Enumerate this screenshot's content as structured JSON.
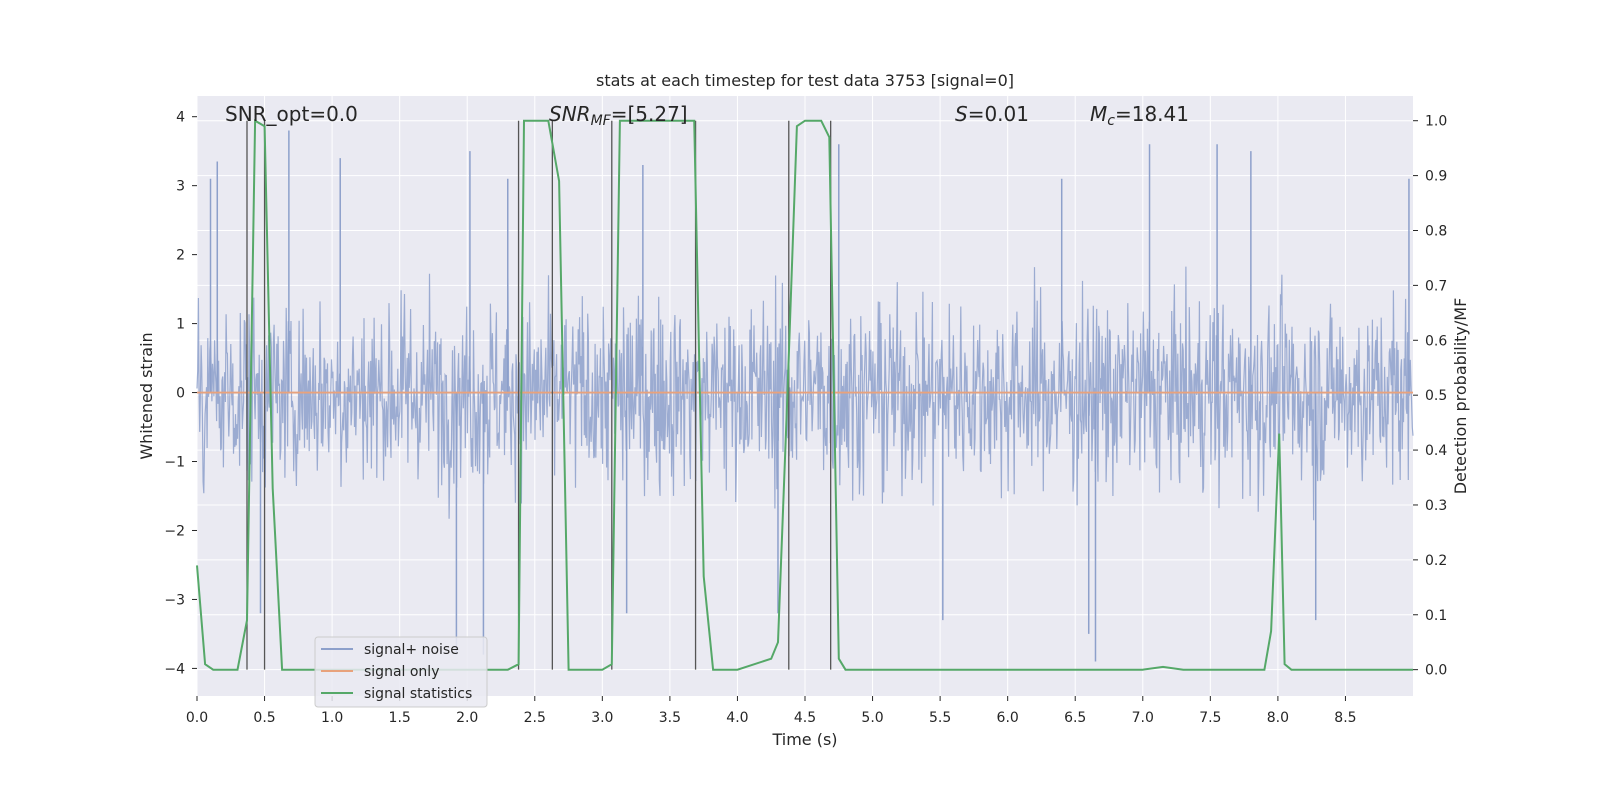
{
  "chart_data": {
    "type": "line",
    "title": "stats at each timestep for test data 3753 [signal=0]",
    "xlabel": "Time (s)",
    "ylabel": "Whitened strain",
    "ylabel_right": "Detection probability/MF",
    "xlim": [
      0.0,
      9.0
    ],
    "ylim": [
      -4.4,
      4.3
    ],
    "ylim_right": [
      -0.048,
      1.045
    ],
    "x_ticks": [
      "0.0",
      "0.5",
      "1.0",
      "1.5",
      "2.0",
      "2.5",
      "3.0",
      "3.5",
      "4.0",
      "4.5",
      "5.0",
      "5.5",
      "6.0",
      "6.5",
      "7.0",
      "7.5",
      "8.0",
      "8.5"
    ],
    "y_ticks": [
      "−4",
      "−3",
      "−2",
      "−1",
      "0",
      "1",
      "2",
      "3",
      "4"
    ],
    "y_ticks_right": [
      "0.0",
      "0.1",
      "0.2",
      "0.3",
      "0.4",
      "0.5",
      "0.6",
      "0.7",
      "0.8",
      "0.9",
      "1.0"
    ],
    "grid": true,
    "legend_position": "lower-left",
    "annotations": {
      "snr_opt": "SNR_opt=0.0",
      "snr_mf_main": "SNR",
      "snr_mf_sub": "MF",
      "snr_mf_rest": "=[5.27]",
      "s_italic": "S",
      "s_rest": "=0.01",
      "mc_main": "M",
      "mc_sub": "c",
      "mc_rest": "=18.41"
    },
    "series": [
      {
        "name": "signal+ noise",
        "color": "#8da0cb",
        "description_values": "noise-like whitened strain, roughly within -3.9 to 3.8",
        "envelope_upper": [
          2.0,
          2.3,
          2.2,
          2.4,
          2.3,
          2.2,
          2.5,
          2.2,
          2.3,
          2.4,
          2.3,
          2.2,
          2.3,
          2.4,
          2.3,
          2.4,
          2.2,
          2.3
        ],
        "peaks": [
          [
            0.1,
            3.1
          ],
          [
            0.15,
            3.35
          ],
          [
            0.68,
            3.8
          ],
          [
            1.06,
            3.4
          ],
          [
            2.02,
            3.5
          ],
          [
            2.3,
            3.1
          ],
          [
            3.3,
            3.3
          ],
          [
            4.75,
            3.6
          ],
          [
            6.4,
            3.1
          ],
          [
            7.05,
            3.6
          ],
          [
            7.55,
            3.6
          ],
          [
            7.8,
            3.5
          ],
          [
            8.97,
            3.1
          ]
        ],
        "troughs": [
          [
            0.47,
            -3.2
          ],
          [
            1.92,
            -3.8
          ],
          [
            2.12,
            -3.8
          ],
          [
            3.18,
            -3.2
          ],
          [
            4.3,
            -3.2
          ],
          [
            5.52,
            -3.3
          ],
          [
            6.6,
            -3.5
          ],
          [
            6.65,
            -3.9
          ],
          [
            8.28,
            -3.3
          ]
        ]
      },
      {
        "name": "signal only",
        "color": "#e8a27c",
        "x": [
          0.0,
          9.0
        ],
        "y": [
          0.0,
          0.0
        ]
      },
      {
        "name": "signal statistics",
        "color": "#55a868",
        "axis": "right",
        "x": [
          0.0,
          0.06,
          0.12,
          0.3,
          0.37,
          0.43,
          0.5,
          0.56,
          0.63,
          1.0,
          2.0,
          2.3,
          2.38,
          2.42,
          2.6,
          2.68,
          2.75,
          3.0,
          3.07,
          3.13,
          3.68,
          3.75,
          3.82,
          4.0,
          4.25,
          4.3,
          4.37,
          4.44,
          4.5,
          4.62,
          4.68,
          4.75,
          4.8,
          5.0,
          6.0,
          7.0,
          7.15,
          7.3,
          7.9,
          7.95,
          8.01,
          8.05,
          8.1,
          8.5,
          9.0
        ],
        "y": [
          0.19,
          0.01,
          0.0,
          0.0,
          0.09,
          1.0,
          0.99,
          0.33,
          0.0,
          0.0,
          0.0,
          0.0,
          0.01,
          1.0,
          1.0,
          0.89,
          0.0,
          0.0,
          0.01,
          1.0,
          1.0,
          0.17,
          0.0,
          0.0,
          0.02,
          0.05,
          0.5,
          0.99,
          1.0,
          1.0,
          0.97,
          0.02,
          0.0,
          0.0,
          0.0,
          0.0,
          0.005,
          0.0,
          0.0,
          0.07,
          0.43,
          0.01,
          0.0,
          0.0,
          0.0
        ]
      }
    ],
    "vertical_lines_x": [
      0.37,
      0.5,
      2.38,
      2.63,
      3.07,
      3.69,
      4.38,
      4.69
    ]
  }
}
